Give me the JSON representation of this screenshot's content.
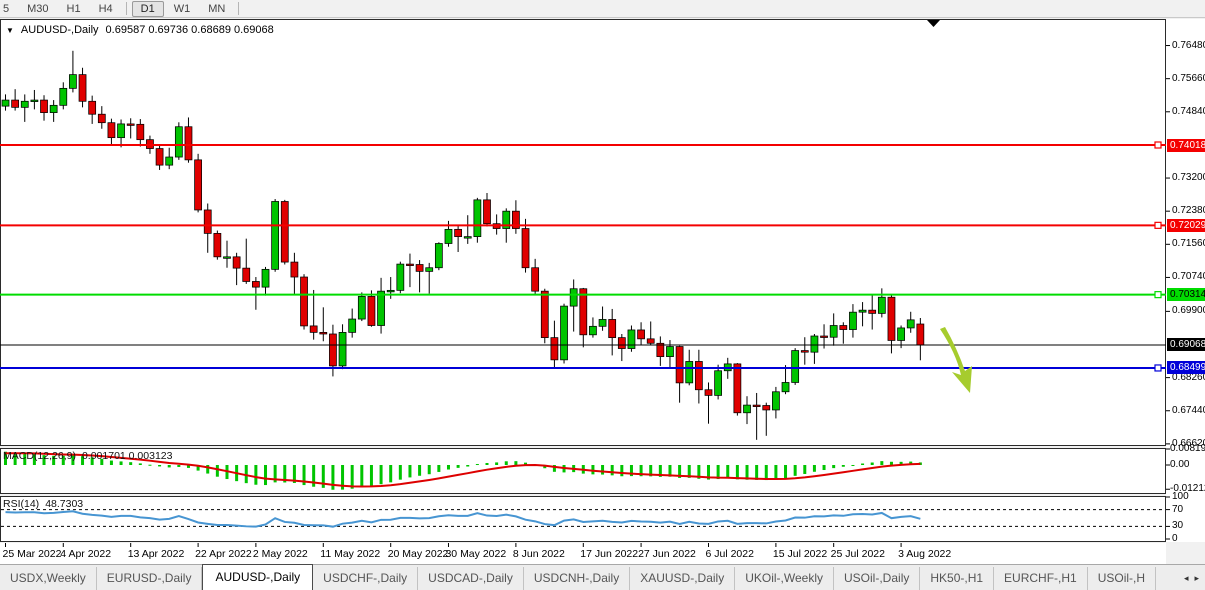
{
  "toolbar": {
    "timeframes": [
      {
        "label": "5",
        "active": false
      },
      {
        "label": "M30",
        "active": false
      },
      {
        "label": "H1",
        "active": false
      },
      {
        "label": "H4",
        "active": false
      },
      {
        "label": "D1",
        "active": true
      },
      {
        "label": "W1",
        "active": false
      },
      {
        "label": "MN",
        "active": false
      }
    ]
  },
  "icons": {
    "dropdown": "▼",
    "scroll_left": "◂",
    "scroll_right": "▸"
  },
  "header": {
    "symbol": "AUDUSD-,Daily",
    "ohlc": "0.69587 0.69736 0.68689 0.69068"
  },
  "chart_data": {
    "type": "candlestick",
    "title": "AUDUSD-,Daily",
    "ohlc_display": [
      "0.69587",
      "0.69736",
      "0.68689",
      "0.69068"
    ],
    "ylim": [
      0.6659,
      0.7714
    ],
    "price_axis_ticks": [
      "0.76480",
      "0.75660",
      "0.74840",
      "0.73200",
      "0.72380",
      "0.71560",
      "0.70740",
      "0.69900",
      "0.68260",
      "0.67440",
      "0.66620"
    ],
    "hlines": [
      {
        "value": 0.74018,
        "label": "0.74018",
        "color": "#f40000",
        "width": 2,
        "text": "#fff",
        "handle": true
      },
      {
        "value": 0.72029,
        "label": "0.72029",
        "color": "#f40000",
        "width": 2,
        "text": "#fff",
        "handle": true
      },
      {
        "value": 0.70314,
        "label": "0.70314",
        "color": "#00dc00",
        "width": 2,
        "text": "#000",
        "handle": true
      },
      {
        "value": 0.69068,
        "label": "0.69068",
        "color": "#000000",
        "width": 1,
        "text": "#fff",
        "handle": false
      },
      {
        "value": 0.68499,
        "label": "0.68499",
        "color": "#0000d8",
        "width": 2,
        "text": "#fff",
        "handle": true
      }
    ],
    "date_ticks": [
      [
        0,
        "25 Mar 2022"
      ],
      [
        6,
        "4 Apr 2022"
      ],
      [
        13,
        "13 Apr 2022"
      ],
      [
        20,
        "22 Apr 2022"
      ],
      [
        26,
        "2 May 2022"
      ],
      [
        33,
        "11 May 2022"
      ],
      [
        40,
        "20 May 2022"
      ],
      [
        46,
        "30 May 2022"
      ],
      [
        53,
        "8 Jun 2022"
      ],
      [
        60,
        "17 Jun 2022"
      ],
      [
        66,
        "27 Jun 2022"
      ],
      [
        73,
        "6 Jul 2022"
      ],
      [
        80,
        "15 Jul 2022"
      ],
      [
        86,
        "25 Jul 2022"
      ],
      [
        93,
        "3 Aug 2022"
      ]
    ],
    "candles": [
      [
        0.7498,
        0.7527,
        0.7487,
        0.7513
      ],
      [
        0.7513,
        0.754,
        0.7487,
        0.7495
      ],
      [
        0.7495,
        0.7527,
        0.7459,
        0.751
      ],
      [
        0.751,
        0.7538,
        0.749,
        0.7513
      ],
      [
        0.7513,
        0.7525,
        0.7462,
        0.7482
      ],
      [
        0.7482,
        0.7513,
        0.7459,
        0.75
      ],
      [
        0.75,
        0.7557,
        0.749,
        0.7542
      ],
      [
        0.7542,
        0.7635,
        0.7532,
        0.7576
      ],
      [
        0.7576,
        0.7593,
        0.7495,
        0.751
      ],
      [
        0.751,
        0.7524,
        0.7454,
        0.7478
      ],
      [
        0.7478,
        0.7498,
        0.7442,
        0.7457
      ],
      [
        0.7457,
        0.7467,
        0.74,
        0.742
      ],
      [
        0.742,
        0.7465,
        0.7396,
        0.7454
      ],
      [
        0.7454,
        0.7468,
        0.7418,
        0.7453
      ],
      [
        0.7453,
        0.7466,
        0.7398,
        0.7415
      ],
      [
        0.7415,
        0.7425,
        0.738,
        0.7393
      ],
      [
        0.7393,
        0.74,
        0.734,
        0.7352
      ],
      [
        0.7352,
        0.7395,
        0.7342,
        0.7372
      ],
      [
        0.7372,
        0.7458,
        0.7365,
        0.7447
      ],
      [
        0.7447,
        0.747,
        0.7358,
        0.7365
      ],
      [
        0.7365,
        0.738,
        0.7235,
        0.7241
      ],
      [
        0.7241,
        0.7257,
        0.7135,
        0.7183
      ],
      [
        0.7183,
        0.719,
        0.7118,
        0.7125
      ],
      [
        0.7125,
        0.7165,
        0.7098,
        0.7125
      ],
      [
        0.7125,
        0.7135,
        0.7055,
        0.7097
      ],
      [
        0.7097,
        0.717,
        0.7058,
        0.7064
      ],
      [
        0.7064,
        0.7075,
        0.6994,
        0.705
      ],
      [
        0.705,
        0.71,
        0.7029,
        0.7094
      ],
      [
        0.7094,
        0.7268,
        0.7088,
        0.7262
      ],
      [
        0.7262,
        0.7266,
        0.7106,
        0.7112
      ],
      [
        0.7112,
        0.7135,
        0.703,
        0.7075
      ],
      [
        0.7075,
        0.7082,
        0.6945,
        0.6954
      ],
      [
        0.6954,
        0.7043,
        0.692,
        0.6938
      ],
      [
        0.6938,
        0.7,
        0.6916,
        0.6934
      ],
      [
        0.6934,
        0.6957,
        0.6829,
        0.6855
      ],
      [
        0.6855,
        0.6958,
        0.6847,
        0.6938
      ],
      [
        0.6938,
        0.6997,
        0.6925,
        0.6971
      ],
      [
        0.6971,
        0.7037,
        0.6966,
        0.7027
      ],
      [
        0.7027,
        0.7042,
        0.6952,
        0.6955
      ],
      [
        0.6955,
        0.7073,
        0.6935,
        0.704
      ],
      [
        0.704,
        0.7075,
        0.7021,
        0.7042
      ],
      [
        0.7042,
        0.7113,
        0.7035,
        0.7107
      ],
      [
        0.7107,
        0.7133,
        0.705,
        0.7106
      ],
      [
        0.7106,
        0.7117,
        0.7037,
        0.7089
      ],
      [
        0.7089,
        0.711,
        0.7034,
        0.7098
      ],
      [
        0.7098,
        0.7161,
        0.7092,
        0.7158
      ],
      [
        0.7158,
        0.7214,
        0.715,
        0.7193
      ],
      [
        0.7193,
        0.7203,
        0.7137,
        0.7175
      ],
      [
        0.7175,
        0.7228,
        0.7157,
        0.7175
      ],
      [
        0.7175,
        0.7271,
        0.716,
        0.7266
      ],
      [
        0.7266,
        0.7283,
        0.72,
        0.7207
      ],
      [
        0.7207,
        0.723,
        0.718,
        0.7195
      ],
      [
        0.7195,
        0.7245,
        0.716,
        0.7238
      ],
      [
        0.7238,
        0.7265,
        0.7182,
        0.7195
      ],
      [
        0.7195,
        0.7219,
        0.7086,
        0.7098
      ],
      [
        0.7098,
        0.712,
        0.7033,
        0.704
      ],
      [
        0.704,
        0.7046,
        0.6911,
        0.6925
      ],
      [
        0.6925,
        0.6967,
        0.685,
        0.687
      ],
      [
        0.687,
        0.7009,
        0.6861,
        0.7003
      ],
      [
        0.7003,
        0.7069,
        0.694,
        0.7046
      ],
      [
        0.7046,
        0.7048,
        0.6901,
        0.6932
      ],
      [
        0.6932,
        0.6975,
        0.6925,
        0.6953
      ],
      [
        0.6953,
        0.7002,
        0.6942,
        0.697
      ],
      [
        0.697,
        0.6996,
        0.6881,
        0.6925
      ],
      [
        0.6925,
        0.6934,
        0.6867,
        0.6898
      ],
      [
        0.6898,
        0.6955,
        0.689,
        0.6944
      ],
      [
        0.6944,
        0.6963,
        0.6908,
        0.6922
      ],
      [
        0.6922,
        0.6965,
        0.6906,
        0.6911
      ],
      [
        0.6911,
        0.6928,
        0.6855,
        0.6878
      ],
      [
        0.6878,
        0.6919,
        0.685,
        0.6903
      ],
      [
        0.6903,
        0.6905,
        0.6764,
        0.6813
      ],
      [
        0.6813,
        0.6895,
        0.6807,
        0.6866
      ],
      [
        0.6866,
        0.6895,
        0.6762,
        0.6796
      ],
      [
        0.6796,
        0.6814,
        0.6712,
        0.6782
      ],
      [
        0.6782,
        0.6858,
        0.6772,
        0.6843
      ],
      [
        0.6843,
        0.6875,
        0.6823,
        0.686
      ],
      [
        0.686,
        0.6862,
        0.6732,
        0.6739
      ],
      [
        0.6739,
        0.678,
        0.6711,
        0.6758
      ],
      [
        0.6758,
        0.6788,
        0.6672,
        0.6757
      ],
      [
        0.6757,
        0.6764,
        0.6682,
        0.6746
      ],
      [
        0.6746,
        0.6803,
        0.6725,
        0.6791
      ],
      [
        0.6791,
        0.6857,
        0.6785,
        0.6814
      ],
      [
        0.6814,
        0.6899,
        0.6808,
        0.6893
      ],
      [
        0.6893,
        0.6926,
        0.6858,
        0.6889
      ],
      [
        0.6889,
        0.6934,
        0.686,
        0.6929
      ],
      [
        0.6929,
        0.6958,
        0.6898,
        0.6926
      ],
      [
        0.6926,
        0.6985,
        0.6905,
        0.6955
      ],
      [
        0.6955,
        0.6963,
        0.691,
        0.6945
      ],
      [
        0.6945,
        0.7008,
        0.6925,
        0.6988
      ],
      [
        0.6988,
        0.7013,
        0.6953,
        0.6993
      ],
      [
        0.6993,
        0.7032,
        0.6945,
        0.6985
      ],
      [
        0.6985,
        0.7047,
        0.6975,
        0.7025
      ],
      [
        0.7025,
        0.7031,
        0.6886,
        0.6918
      ],
      [
        0.6918,
        0.6955,
        0.6899,
        0.6949
      ],
      [
        0.6949,
        0.6989,
        0.6937,
        0.6969
      ],
      [
        0.69587,
        0.69736,
        0.68689,
        0.69068
      ]
    ],
    "indicators": [
      {
        "name": "MACD",
        "label": "MACD(12,26,9)",
        "values_display": "0.001701 0.003123",
        "axis_ticks": [
          "0.008197",
          "0.00",
          "-0.01212"
        ]
      },
      {
        "name": "RSI",
        "label": "RSI(14)",
        "value_display": "48.7303",
        "axis_ticks": [
          "100",
          "70",
          "30",
          "0"
        ],
        "levels": [
          70,
          30
        ]
      }
    ],
    "annotation_arrow": {
      "shape": "down-right-arrow",
      "color": "#a6cc2e"
    }
  },
  "colors": {
    "candle_up": "#00c400",
    "candle_down": "#e00000",
    "candle_border": "#000000",
    "wick": "#000000",
    "macd_hist": "#00c400",
    "macd_signal": "#dd0000",
    "rsi_line": "#4795d2",
    "level_dash": "#000000"
  },
  "tabs": {
    "items": [
      "USDX,Weekly",
      "EURUSD-,Daily",
      "AUDUSD-,Daily",
      "USDCHF-,Daily",
      "USDCAD-,Daily",
      "USDCNH-,Daily",
      "XAUUSD-,Daily",
      "UKOil-,Weekly",
      "USOil-,Daily",
      "HK50-,H1",
      "EURCHF-,H1",
      "USOil-,H"
    ],
    "active": "AUDUSD-,Daily"
  }
}
